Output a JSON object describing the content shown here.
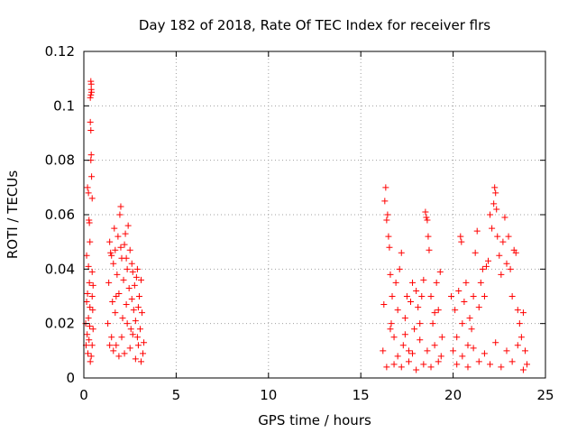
{
  "chart_data": {
    "type": "scatter",
    "title": "Day 182 of 2018, Rate Of TEC Index for receiver flrs",
    "xlabel": "GPS time / hours",
    "ylabel": "ROTI / TECUs",
    "xlim": [
      0,
      25
    ],
    "ylim": [
      0,
      0.12
    ],
    "x_ticks": [
      0,
      5,
      10,
      15,
      20,
      25
    ],
    "x_tick_labels": [
      "0",
      "5",
      "10",
      "15",
      "20",
      "25"
    ],
    "y_ticks": [
      0,
      0.02,
      0.04,
      0.06,
      0.08,
      0.1,
      0.12
    ],
    "y_tick_labels": [
      "0",
      "0.02",
      "0.04",
      "0.06",
      "0.08",
      "0.1",
      "0.12"
    ],
    "grid": true,
    "marker": "+",
    "marker_color": "#ff0000",
    "series": [
      {
        "name": "ROTI",
        "points": [
          [
            0.1,
            0.02
          ],
          [
            0.12,
            0.012
          ],
          [
            0.15,
            0.028
          ],
          [
            0.18,
            0.016
          ],
          [
            0.2,
            0.031
          ],
          [
            0.22,
            0.009
          ],
          [
            0.25,
            0.022
          ],
          [
            0.28,
            0.014
          ],
          [
            0.3,
            0.035
          ],
          [
            0.32,
            0.019
          ],
          [
            0.2,
            0.07
          ],
          [
            0.25,
            0.068
          ],
          [
            0.28,
            0.058
          ],
          [
            0.3,
            0.057
          ],
          [
            0.33,
            0.05
          ],
          [
            0.38,
            0.08
          ],
          [
            0.4,
            0.082
          ],
          [
            0.42,
            0.074
          ],
          [
            0.45,
            0.066
          ],
          [
            0.35,
            0.094
          ],
          [
            0.38,
            0.091
          ],
          [
            0.35,
            0.103
          ],
          [
            0.38,
            0.104
          ],
          [
            0.4,
            0.106
          ],
          [
            0.4,
            0.108
          ],
          [
            0.38,
            0.109
          ],
          [
            0.42,
            0.105
          ],
          [
            0.45,
            0.03
          ],
          [
            0.48,
            0.025
          ],
          [
            0.5,
            0.034
          ],
          [
            0.35,
            0.006
          ],
          [
            0.4,
            0.008
          ],
          [
            0.45,
            0.012
          ],
          [
            0.5,
            0.018
          ],
          [
            0.15,
            0.045
          ],
          [
            0.25,
            0.041
          ],
          [
            0.33,
            0.026
          ],
          [
            0.45,
            0.039
          ],
          [
            1.3,
            0.02
          ],
          [
            1.35,
            0.035
          ],
          [
            1.4,
            0.05
          ],
          [
            1.45,
            0.046
          ],
          [
            1.5,
            0.015
          ],
          [
            1.55,
            0.028
          ],
          [
            1.6,
            0.042
          ],
          [
            1.65,
            0.055
          ],
          [
            1.7,
            0.024
          ],
          [
            1.75,
            0.012
          ],
          [
            1.8,
            0.038
          ],
          [
            1.85,
            0.052
          ],
          [
            1.9,
            0.031
          ],
          [
            1.95,
            0.06
          ],
          [
            2.0,
            0.063
          ],
          [
            2.05,
            0.044
          ],
          [
            2.1,
            0.022
          ],
          [
            2.15,
            0.036
          ],
          [
            2.2,
            0.049
          ],
          [
            2.25,
            0.053
          ],
          [
            2.3,
            0.027
          ],
          [
            2.35,
            0.04
          ],
          [
            2.4,
            0.056
          ],
          [
            2.45,
            0.033
          ],
          [
            2.5,
            0.047
          ],
          [
            2.55,
            0.018
          ],
          [
            2.6,
            0.029
          ],
          [
            2.65,
            0.039
          ],
          [
            2.7,
            0.025
          ],
          [
            2.75,
            0.034
          ],
          [
            2.8,
            0.021
          ],
          [
            2.85,
            0.037
          ],
          [
            2.9,
            0.015
          ],
          [
            2.95,
            0.026
          ],
          [
            3.0,
            0.03
          ],
          [
            3.05,
            0.018
          ],
          [
            3.1,
            0.036
          ],
          [
            3.15,
            0.024
          ],
          [
            3.2,
            0.009
          ],
          [
            3.25,
            0.013
          ],
          [
            1.5,
            0.045
          ],
          [
            1.7,
            0.047
          ],
          [
            2.0,
            0.048
          ],
          [
            2.3,
            0.044
          ],
          [
            2.6,
            0.042
          ],
          [
            2.9,
            0.04
          ],
          [
            1.6,
            0.01
          ],
          [
            1.9,
            0.008
          ],
          [
            2.2,
            0.009
          ],
          [
            2.5,
            0.011
          ],
          [
            2.8,
            0.007
          ],
          [
            3.1,
            0.006
          ],
          [
            1.4,
            0.012
          ],
          [
            1.75,
            0.03
          ],
          [
            2.05,
            0.015
          ],
          [
            2.35,
            0.02
          ],
          [
            2.65,
            0.016
          ],
          [
            2.95,
            0.012
          ],
          [
            16.2,
            0.01
          ],
          [
            16.25,
            0.027
          ],
          [
            16.3,
            0.065
          ],
          [
            16.35,
            0.07
          ],
          [
            16.4,
            0.058
          ],
          [
            16.45,
            0.06
          ],
          [
            16.5,
            0.052
          ],
          [
            16.55,
            0.048
          ],
          [
            16.6,
            0.038
          ],
          [
            16.65,
            0.02
          ],
          [
            16.7,
            0.03
          ],
          [
            16.8,
            0.015
          ],
          [
            16.9,
            0.035
          ],
          [
            17.0,
            0.025
          ],
          [
            17.1,
            0.04
          ],
          [
            17.2,
            0.046
          ],
          [
            17.3,
            0.012
          ],
          [
            17.4,
            0.022
          ],
          [
            17.5,
            0.03
          ],
          [
            17.6,
            0.01
          ],
          [
            17.7,
            0.028
          ],
          [
            17.8,
            0.035
          ],
          [
            17.9,
            0.018
          ],
          [
            18.0,
            0.032
          ],
          [
            18.1,
            0.026
          ],
          [
            18.2,
            0.014
          ],
          [
            18.3,
            0.03
          ],
          [
            18.4,
            0.036
          ],
          [
            18.5,
            0.061
          ],
          [
            18.55,
            0.059
          ],
          [
            18.6,
            0.058
          ],
          [
            18.65,
            0.052
          ],
          [
            18.7,
            0.047
          ],
          [
            18.8,
            0.03
          ],
          [
            18.9,
            0.02
          ],
          [
            19.0,
            0.012
          ],
          [
            19.1,
            0.035
          ],
          [
            19.2,
            0.025
          ],
          [
            19.3,
            0.039
          ],
          [
            19.4,
            0.015
          ],
          [
            16.4,
            0.004
          ],
          [
            16.8,
            0.005
          ],
          [
            17.2,
            0.004
          ],
          [
            17.6,
            0.006
          ],
          [
            18.0,
            0.003
          ],
          [
            18.4,
            0.005
          ],
          [
            18.8,
            0.004
          ],
          [
            19.2,
            0.006
          ],
          [
            16.6,
            0.018
          ],
          [
            17.0,
            0.008
          ],
          [
            17.4,
            0.016
          ],
          [
            17.8,
            0.009
          ],
          [
            18.2,
            0.02
          ],
          [
            18.6,
            0.01
          ],
          [
            19.0,
            0.024
          ],
          [
            19.35,
            0.008
          ],
          [
            19.9,
            0.03
          ],
          [
            20.0,
            0.01
          ],
          [
            20.1,
            0.025
          ],
          [
            20.2,
            0.015
          ],
          [
            20.3,
            0.032
          ],
          [
            20.4,
            0.052
          ],
          [
            20.45,
            0.05
          ],
          [
            20.5,
            0.02
          ],
          [
            20.6,
            0.028
          ],
          [
            20.7,
            0.035
          ],
          [
            20.8,
            0.012
          ],
          [
            20.9,
            0.022
          ],
          [
            21.0,
            0.018
          ],
          [
            21.1,
            0.03
          ],
          [
            21.2,
            0.046
          ],
          [
            21.3,
            0.054
          ],
          [
            21.4,
            0.026
          ],
          [
            21.5,
            0.035
          ],
          [
            21.6,
            0.04
          ],
          [
            21.7,
            0.03
          ],
          [
            21.8,
            0.041
          ],
          [
            21.9,
            0.043
          ],
          [
            22.0,
            0.06
          ],
          [
            22.1,
            0.055
          ],
          [
            22.2,
            0.064
          ],
          [
            22.25,
            0.07
          ],
          [
            22.3,
            0.068
          ],
          [
            22.35,
            0.062
          ],
          [
            22.4,
            0.052
          ],
          [
            22.5,
            0.045
          ],
          [
            22.6,
            0.038
          ],
          [
            22.7,
            0.05
          ],
          [
            22.8,
            0.059
          ],
          [
            22.9,
            0.042
          ],
          [
            23.0,
            0.052
          ],
          [
            23.1,
            0.04
          ],
          [
            23.2,
            0.03
          ],
          [
            23.3,
            0.047
          ],
          [
            23.4,
            0.046
          ],
          [
            23.5,
            0.025
          ],
          [
            23.6,
            0.02
          ],
          [
            23.7,
            0.015
          ],
          [
            23.8,
            0.024
          ],
          [
            23.9,
            0.01
          ],
          [
            24.0,
            0.005
          ],
          [
            20.2,
            0.005
          ],
          [
            20.8,
            0.004
          ],
          [
            21.4,
            0.006
          ],
          [
            22.0,
            0.005
          ],
          [
            22.6,
            0.004
          ],
          [
            23.2,
            0.006
          ],
          [
            23.8,
            0.003
          ],
          [
            20.5,
            0.008
          ],
          [
            21.1,
            0.011
          ],
          [
            21.7,
            0.009
          ],
          [
            22.3,
            0.013
          ],
          [
            22.9,
            0.01
          ],
          [
            23.5,
            0.012
          ]
        ]
      }
    ]
  }
}
